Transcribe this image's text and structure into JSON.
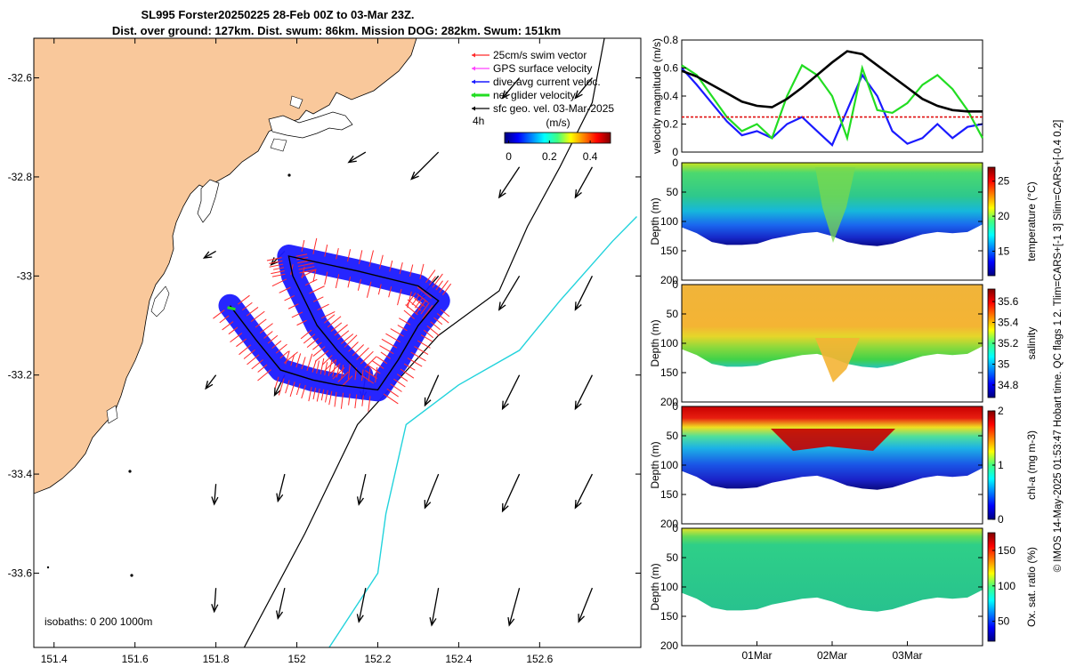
{
  "title": {
    "line1": "SL995 Forster20250225 28-Feb 00Z to 03-Mar 23Z.",
    "line2": "Dist. over ground: 127km. Dist. swum: 86km. Mission DOG: 282km. Swum: 151km"
  },
  "side_text": "© IMOS 14-May-2025 01:53:47 Hobart time. QC flags 1  2. Tlim=CARS+[-1 3] Slim=CARS+[-0.4 0.2]",
  "colors": {
    "land": "#f9c89b",
    "swim": "#ff2a2a",
    "gps": "#ff40ff",
    "dive": "#1a1aff",
    "net": "#22dd22",
    "geo": "#000000",
    "iso200": "#000000",
    "iso1000": "#22d3dc"
  },
  "chart_data": [
    {
      "type": "map",
      "name": "track-map",
      "xlim": [
        151.35,
        152.85
      ],
      "ylim": [
        -33.75,
        -32.52
      ],
      "xticks": [
        "151.4",
        "151.6",
        "151.8",
        "152",
        "152.2",
        "152.4",
        "152.6"
      ],
      "xtick_values": [
        151.4,
        151.6,
        151.8,
        152.0,
        152.2,
        152.4,
        152.6
      ],
      "yticks": [
        "-32.6",
        "-32.8",
        "-33",
        "-33.2",
        "-33.4",
        "-33.6"
      ],
      "ytick_values": [
        -32.6,
        -32.8,
        -33.0,
        -33.2,
        -33.4,
        -33.6
      ],
      "legend": [
        {
          "label": "25cm/s swim vector",
          "color": "#ff2a2a"
        },
        {
          "label": "GPS surface velocity",
          "color": "#ff40ff"
        },
        {
          "label": "dive-avg current veloc.",
          "color": "#1a1aff"
        },
        {
          "label": "net glider velocity",
          "color": "#22dd22"
        },
        {
          "label": "sfc geo. vel. 03-Mar-2025",
          "color": "#000000"
        }
      ],
      "time_marker": "4h",
      "colorbar": {
        "label": "(m/s)",
        "ticks": [
          "0",
          "0.2",
          "0.4"
        ],
        "tick_values": [
          0,
          0.2,
          0.4
        ],
        "range": [
          -0.02,
          0.5
        ]
      },
      "isobaths_label": "isobaths: 0   200  1000m",
      "glider_track": [
        [
          151.835,
          -33.06
        ],
        [
          151.9,
          -33.13
        ],
        [
          151.96,
          -33.19
        ],
        [
          152.04,
          -33.21
        ],
        [
          152.1,
          -33.22
        ],
        [
          152.2,
          -33.23
        ],
        [
          152.25,
          -33.17
        ],
        [
          152.3,
          -33.1
        ],
        [
          152.35,
          -33.05
        ],
        [
          152.3,
          -33.02
        ],
        [
          152.15,
          -32.99
        ],
        [
          151.98,
          -32.96
        ],
        [
          151.99,
          -33.0
        ],
        [
          152.05,
          -33.1
        ],
        [
          152.1,
          -33.15
        ],
        [
          152.16,
          -33.2
        ]
      ],
      "geo_arrows": [
        [
          151.8,
          -32.95,
          -0.35,
          -0.2
        ],
        [
          151.8,
          -33.2,
          -0.3,
          -0.4
        ],
        [
          151.8,
          -33.42,
          -0.05,
          -0.6
        ],
        [
          151.8,
          -33.63,
          -0.05,
          -0.7
        ],
        [
          151.97,
          -33.4,
          -0.2,
          -0.8
        ],
        [
          151.97,
          -33.63,
          -0.2,
          -0.9
        ],
        [
          151.97,
          -33.2,
          -0.3,
          -0.6
        ],
        [
          151.97,
          -32.95,
          -0.4,
          -0.4
        ],
        [
          152.17,
          -32.75,
          -0.5,
          -0.3
        ],
        [
          152.17,
          -33.2,
          -0.1,
          -0.7
        ],
        [
          152.17,
          -33.4,
          -0.2,
          -0.9
        ],
        [
          152.17,
          -33.63,
          -0.2,
          -1.0
        ],
        [
          152.35,
          -32.75,
          -0.8,
          -0.8
        ],
        [
          152.35,
          -33.0,
          -0.6,
          -0.7
        ],
        [
          152.35,
          -33.2,
          -0.4,
          -0.9
        ],
        [
          152.35,
          -33.4,
          -0.4,
          -1.0
        ],
        [
          152.35,
          -33.63,
          -0.2,
          -1.1
        ],
        [
          152.55,
          -32.6,
          -0.5,
          -0.6
        ],
        [
          152.55,
          -32.78,
          -0.6,
          -0.9
        ],
        [
          152.55,
          -33.0,
          -0.6,
          -1.0
        ],
        [
          152.55,
          -33.2,
          -0.5,
          -1.0
        ],
        [
          152.55,
          -33.4,
          -0.5,
          -1.1
        ],
        [
          152.55,
          -33.63,
          -0.3,
          -1.1
        ],
        [
          152.73,
          -32.6,
          -0.5,
          -0.6
        ],
        [
          152.73,
          -32.78,
          -0.5,
          -0.9
        ],
        [
          152.73,
          -33.0,
          -0.5,
          -1.0
        ],
        [
          152.73,
          -33.2,
          -0.5,
          -1.0
        ],
        [
          152.73,
          -33.4,
          -0.5,
          -1.0
        ],
        [
          152.73,
          -33.63,
          -0.4,
          -1.0
        ]
      ],
      "isobath_200": [
        [
          151.87,
          -33.75
        ],
        [
          152.02,
          -33.52
        ],
        [
          152.15,
          -33.3
        ],
        [
          152.35,
          -33.12
        ],
        [
          152.5,
          -33.03
        ],
        [
          152.57,
          -32.9
        ],
        [
          152.65,
          -32.78
        ],
        [
          152.73,
          -32.65
        ],
        [
          152.76,
          -32.52
        ]
      ],
      "isobath_1000": [
        [
          152.08,
          -33.75
        ],
        [
          152.2,
          -33.6
        ],
        [
          152.22,
          -33.48
        ],
        [
          152.27,
          -33.3
        ],
        [
          152.4,
          -33.22
        ],
        [
          152.55,
          -33.15
        ],
        [
          152.65,
          -33.05
        ],
        [
          152.78,
          -32.93
        ],
        [
          152.84,
          -32.88
        ]
      ]
    },
    {
      "type": "line",
      "name": "velocity-magnitude",
      "ylabel": "velocity magnitude (m/s)",
      "ylim": [
        0,
        0.8
      ],
      "yticks": [
        "0",
        "0.2",
        "0.4",
        "0.6",
        "0.8"
      ],
      "ytick_values": [
        0,
        0.2,
        0.4,
        0.6,
        0.8
      ],
      "x": [
        0,
        0.05,
        0.1,
        0.15,
        0.2,
        0.25,
        0.3,
        0.35,
        0.4,
        0.45,
        0.5,
        0.55,
        0.6,
        0.65,
        0.7,
        0.75,
        0.8,
        0.85,
        0.9,
        0.95,
        1.0
      ],
      "series": [
        {
          "name": "dive-avg current",
          "color": "#1a1aff",
          "values": [
            0.6,
            0.48,
            0.35,
            0.22,
            0.12,
            0.15,
            0.1,
            0.2,
            0.25,
            0.15,
            0.05,
            0.3,
            0.55,
            0.4,
            0.15,
            0.06,
            0.1,
            0.2,
            0.1,
            0.18,
            0.2
          ]
        },
        {
          "name": "net glider",
          "color": "#22dd22",
          "values": [
            0.62,
            0.55,
            0.4,
            0.25,
            0.15,
            0.2,
            0.1,
            0.4,
            0.62,
            0.55,
            0.4,
            0.1,
            0.6,
            0.3,
            0.28,
            0.35,
            0.48,
            0.55,
            0.45,
            0.3,
            0.1
          ]
        },
        {
          "name": "sfc geo speed",
          "color": "#000000",
          "values": [
            0.58,
            0.54,
            0.48,
            0.42,
            0.36,
            0.33,
            0.32,
            0.38,
            0.46,
            0.55,
            0.64,
            0.72,
            0.7,
            0.62,
            0.54,
            0.46,
            0.38,
            0.33,
            0.3,
            0.29,
            0.29
          ]
        },
        {
          "name": "reference",
          "color": "#e01010",
          "values": [
            0.25,
            0.25,
            0.25,
            0.25,
            0.25,
            0.25,
            0.25,
            0.25,
            0.25,
            0.25,
            0.25,
            0.25,
            0.25,
            0.25,
            0.25,
            0.25,
            0.25,
            0.25,
            0.25,
            0.25,
            0.25
          ]
        }
      ]
    },
    {
      "type": "heatmap",
      "name": "temperature-section",
      "ylabel": "Depth (m)",
      "clabel": "temperature (°C)",
      "ylim": [
        0,
        200
      ],
      "yticks": [
        "0",
        "50",
        "100",
        "150",
        "200"
      ],
      "ytick_values": [
        0,
        50,
        100,
        150,
        200
      ],
      "cticks": [
        "15",
        "20",
        "25"
      ],
      "ctick_values": [
        15,
        20,
        25
      ],
      "crange": [
        11.5,
        27
      ],
      "bottom_depth": [
        110,
        120,
        135,
        140,
        140,
        138,
        130,
        125,
        120,
        118,
        125,
        135,
        140,
        142,
        138,
        130,
        122,
        118,
        120,
        118,
        105
      ]
    },
    {
      "type": "heatmap",
      "name": "salinity-section",
      "ylabel": "Depth (m)",
      "clabel": "salinity",
      "ylim": [
        0,
        200
      ],
      "yticks": [
        "0",
        "50",
        "100",
        "150",
        "200"
      ],
      "ytick_values": [
        0,
        50,
        100,
        150,
        200
      ],
      "cticks": [
        "34.8",
        "35",
        "35.2",
        "35.4",
        "35.6"
      ],
      "ctick_values": [
        34.8,
        35.0,
        35.2,
        35.4,
        35.6
      ],
      "crange": [
        34.68,
        35.72
      ],
      "bottom_depth": [
        110,
        120,
        135,
        140,
        140,
        138,
        130,
        125,
        120,
        118,
        125,
        135,
        140,
        142,
        138,
        130,
        122,
        118,
        120,
        118,
        105
      ]
    },
    {
      "type": "heatmap",
      "name": "chlorophyll-section",
      "ylabel": "Depth (m)",
      "clabel": "chl-a (mg m-3)",
      "ylim": [
        0,
        200
      ],
      "yticks": [
        "0",
        "50",
        "100",
        "150",
        "200"
      ],
      "ytick_values": [
        0,
        50,
        100,
        150,
        200
      ],
      "cticks": [
        "0",
        "1",
        "2"
      ],
      "ctick_values": [
        0,
        1,
        2
      ],
      "crange": [
        0,
        2
      ],
      "bottom_depth": [
        110,
        120,
        135,
        140,
        140,
        138,
        130,
        125,
        120,
        118,
        125,
        135,
        140,
        142,
        138,
        130,
        122,
        118,
        120,
        118,
        105
      ]
    },
    {
      "type": "heatmap",
      "name": "oxygen-section",
      "ylabel": "Depth (m)",
      "clabel": "Ox. sat. ratio (%)",
      "ylim": [
        0,
        200
      ],
      "yticks": [
        "0",
        "50",
        "100",
        "150",
        "200"
      ],
      "ytick_values": [
        0,
        50,
        100,
        150,
        200
      ],
      "cticks": [
        "50",
        "100",
        "150"
      ],
      "ctick_values": [
        50,
        100,
        150
      ],
      "crange": [
        22,
        175
      ],
      "xticks": [
        "01Mar",
        "02Mar",
        "03Mar"
      ],
      "xtick_fracs": [
        0.25,
        0.5,
        0.75
      ],
      "bottom_depth": [
        110,
        120,
        135,
        140,
        140,
        138,
        130,
        125,
        120,
        118,
        125,
        135,
        140,
        142,
        138,
        130,
        122,
        118,
        120,
        118,
        105
      ]
    }
  ]
}
